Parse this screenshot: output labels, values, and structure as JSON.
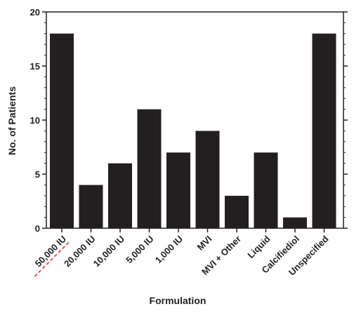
{
  "chart_data": {
    "type": "bar",
    "title": "",
    "xlabel": "Formulation",
    "ylabel": "No. of Patients",
    "categories": [
      "50,000 IU",
      "20,000 IU",
      "10,000 IU",
      "5,000 IU",
      "1,000 IU",
      "MVI",
      "MVI + Other",
      "Liquid",
      "Calcifiediol",
      "Unspecified"
    ],
    "values": [
      18,
      4,
      6,
      11,
      7,
      9,
      3,
      7,
      1,
      18
    ],
    "ylim": [
      0,
      20
    ],
    "yticks": [
      0,
      5,
      10,
      15,
      20
    ],
    "grid": false,
    "legend": "none",
    "bar_color": "#231f20",
    "axis_color": "#231f20",
    "highlight_category": "50,000 IU",
    "highlight_color": "#e8262a"
  }
}
